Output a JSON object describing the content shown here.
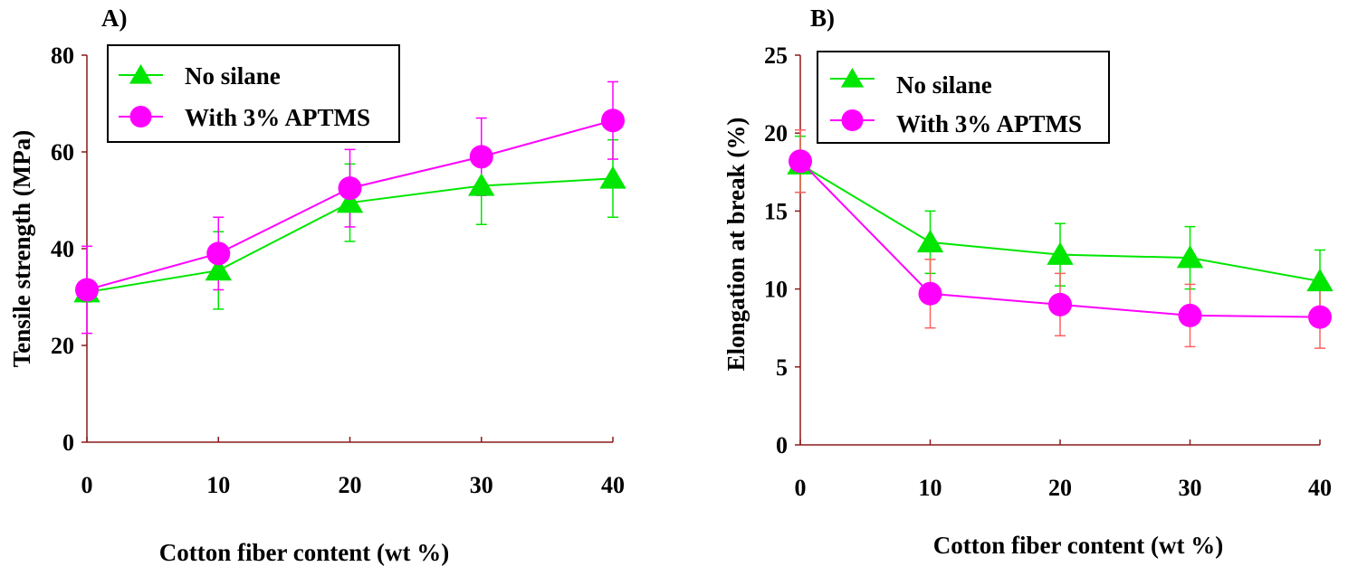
{
  "colors": {
    "no_silane": "#00e600",
    "aptms": "#ff00ff",
    "axis": "#8b1a1a",
    "error_bar_no_silane": "#00e600",
    "error_bar_aptms": "#ff00ff",
    "error_bar_aptms_b": "#ff6060"
  },
  "chart_data": [
    {
      "type": "line",
      "panel_label": "A)",
      "title": "",
      "xlabel": "Cotton fiber content (wt %)",
      "ylabel": "Tensile strength (MPa)",
      "x": [
        0,
        10,
        20,
        30,
        40
      ],
      "xticks": [
        "0",
        "10",
        "20",
        "30",
        "40"
      ],
      "yticks": [
        "0",
        "20",
        "40",
        "60",
        "80"
      ],
      "xlim": [
        0,
        40
      ],
      "ylim": [
        0,
        80
      ],
      "legend": {
        "placement": "top-left",
        "entries": [
          "No silane",
          "With 3% APTMS"
        ]
      },
      "series": [
        {
          "name": "No silane",
          "marker": "triangle",
          "values": [
            31,
            35.5,
            49.5,
            53,
            54.5
          ],
          "errors": [
            2,
            8,
            8,
            8,
            8
          ]
        },
        {
          "name": "With 3% APTMS",
          "marker": "circle",
          "values": [
            31.5,
            39,
            52.5,
            59,
            66.5
          ],
          "errors": [
            9,
            7.5,
            8,
            8,
            8
          ]
        }
      ]
    },
    {
      "type": "line",
      "panel_label": "B)",
      "title": "",
      "xlabel": "Cotton fiber content (wt %)",
      "ylabel": "Elongation at break (%)",
      "x": [
        0,
        10,
        20,
        30,
        40
      ],
      "xticks": [
        "0",
        "10",
        "20",
        "30",
        "40"
      ],
      "yticks": [
        "0",
        "5",
        "10",
        "15",
        "20",
        "25"
      ],
      "xlim": [
        0,
        40
      ],
      "ylim": [
        0,
        25
      ],
      "legend": {
        "placement": "top-left",
        "entries": [
          "No silane",
          "With 3% APTMS"
        ]
      },
      "series": [
        {
          "name": "No silane",
          "marker": "triangle",
          "values": [
            18,
            13,
            12.2,
            12,
            10.5
          ],
          "errors": [
            1.8,
            2,
            2,
            2,
            2
          ]
        },
        {
          "name": "With 3% APTMS",
          "marker": "circle",
          "values": [
            18.2,
            9.7,
            9,
            8.3,
            8.2
          ],
          "errors": [
            2,
            2.2,
            2,
            2,
            2
          ]
        }
      ]
    }
  ]
}
